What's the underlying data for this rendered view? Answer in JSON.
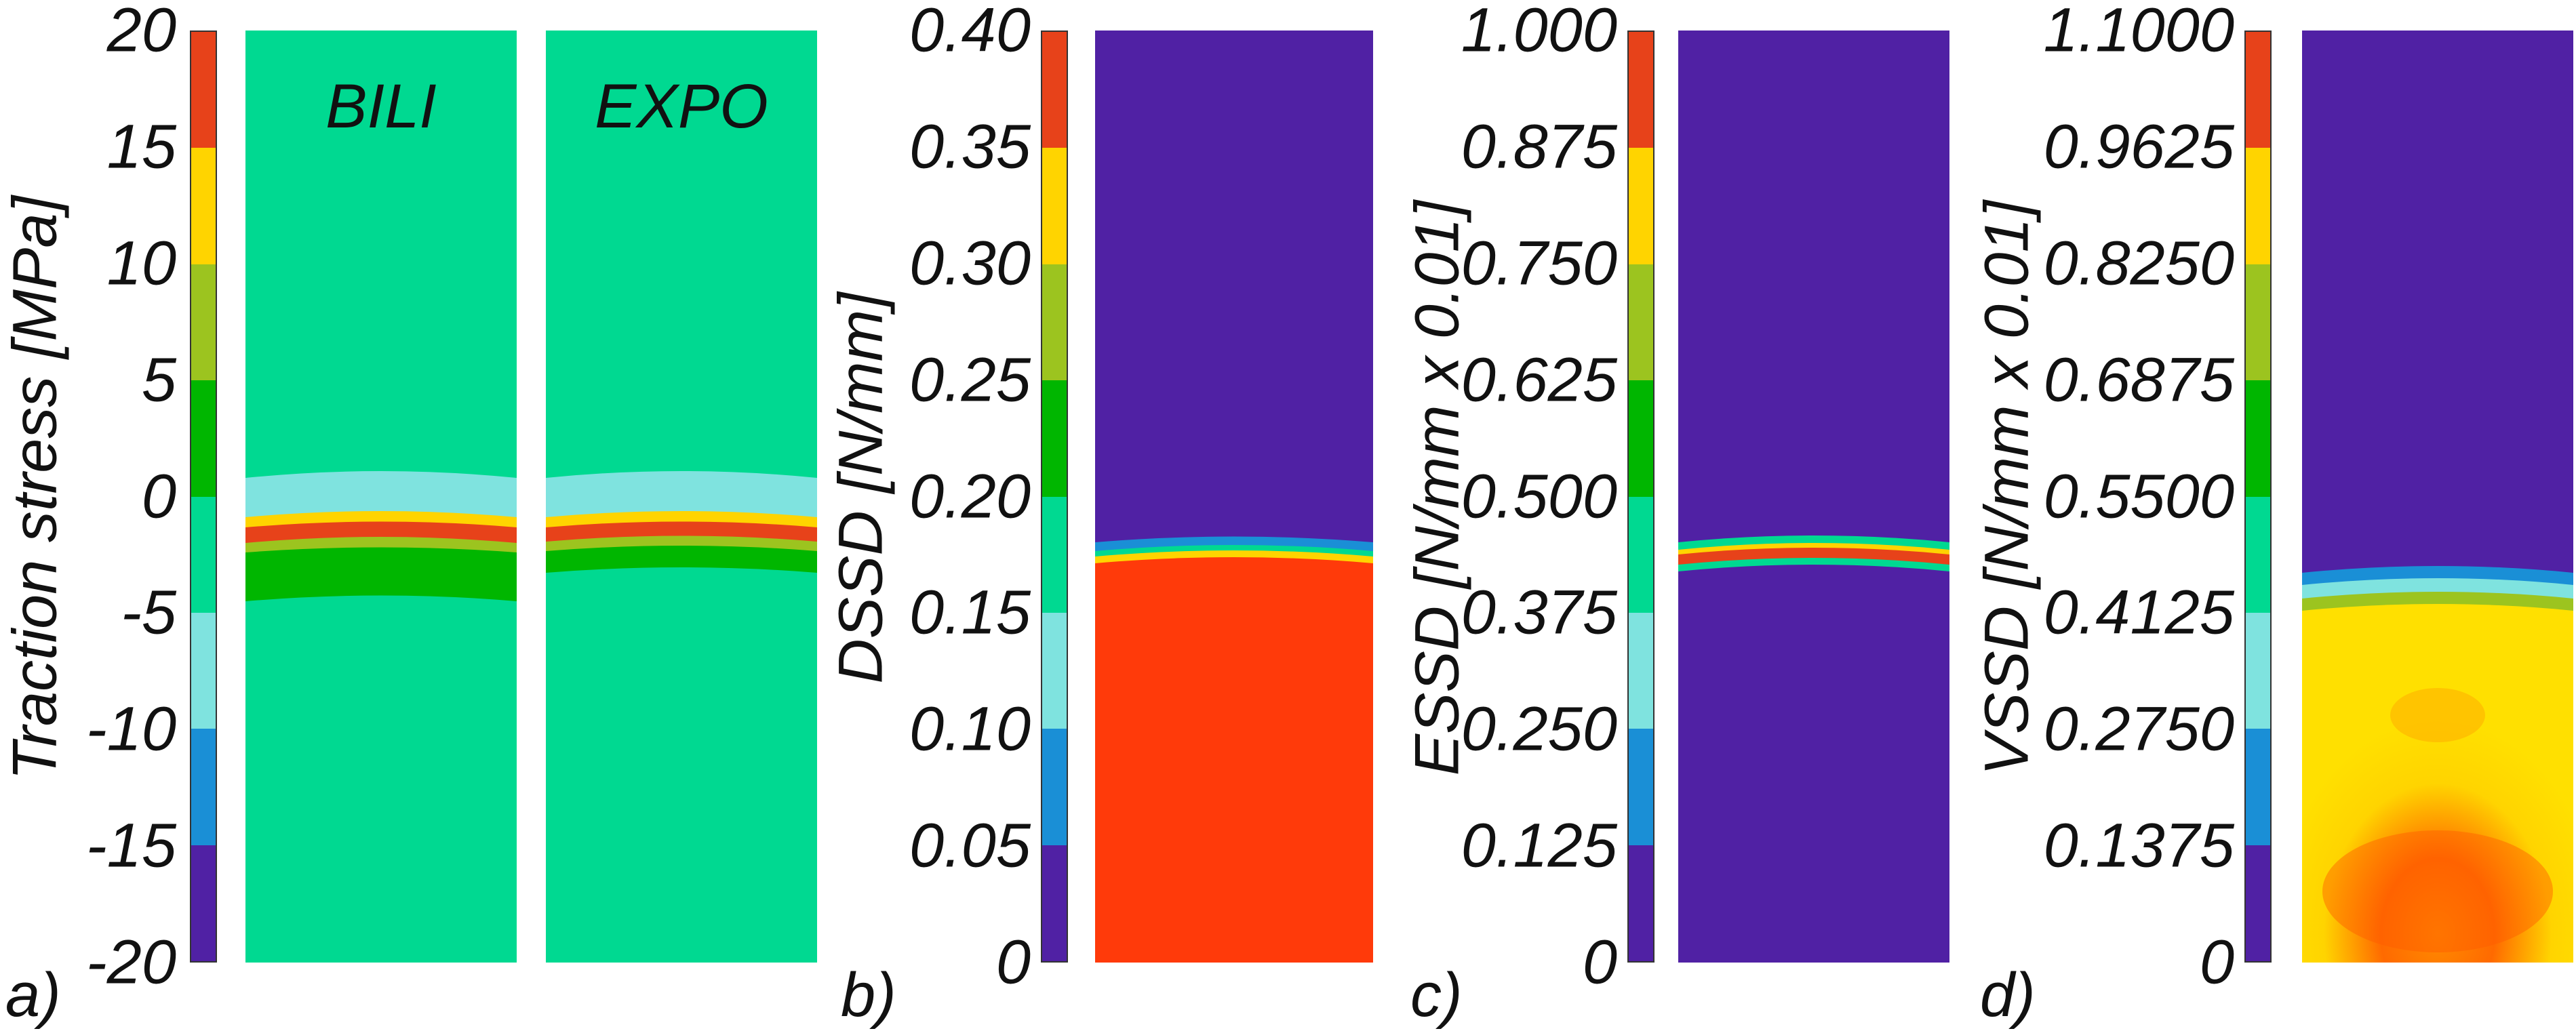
{
  "panels": [
    {
      "id": "a",
      "letter": "a)",
      "ylabel": "Traction stress [MPa]",
      "ticks": [
        "20",
        "15",
        "10",
        "5",
        "0",
        "-5",
        "-10",
        "-15",
        "-20"
      ],
      "colorbar": [
        "#e7421a",
        "#ffd400",
        "#9cc41f",
        "#00b600",
        "#00d991",
        "#7fe3df",
        "#1a8fd6",
        "#5021a4"
      ],
      "fields": [
        "BILI",
        "EXPO"
      ]
    },
    {
      "id": "b",
      "letter": "b)",
      "ylabel": "DSSD [N/mm]",
      "ticks": [
        "0.40",
        "0.35",
        "0.30",
        "0.25",
        "0.20",
        "0.15",
        "0.10",
        "0.05",
        "0"
      ],
      "colorbar": [
        "#e7421a",
        "#ffd400",
        "#9cc41f",
        "#00b600",
        "#00d991",
        "#7fe3df",
        "#1a8fd6",
        "#5021a4"
      ]
    },
    {
      "id": "c",
      "letter": "c)",
      "ylabel": "ESSD [N/mm x 0.01]",
      "ticks": [
        "1.000",
        "0.875",
        "0.750",
        "0.625",
        "0.500",
        "0.375",
        "0.250",
        "0.125",
        "0"
      ],
      "colorbar": [
        "#e7421a",
        "#ffd400",
        "#9cc41f",
        "#00b600",
        "#00d991",
        "#7fe3df",
        "#1a8fd6",
        "#5021a4"
      ]
    },
    {
      "id": "d",
      "letter": "d)",
      "ylabel": "VSSD [N/mm x 0.01]",
      "ticks": [
        "1.1000",
        "0.9625",
        "0.8250",
        "0.6875",
        "0.5500",
        "0.4125",
        "0.2750",
        "0.1375",
        "0"
      ],
      "colorbar": [
        "#e7421a",
        "#ffd400",
        "#9cc41f",
        "#00b600",
        "#00d991",
        "#7fe3df",
        "#1a8fd6",
        "#5021a4"
      ]
    }
  ]
}
